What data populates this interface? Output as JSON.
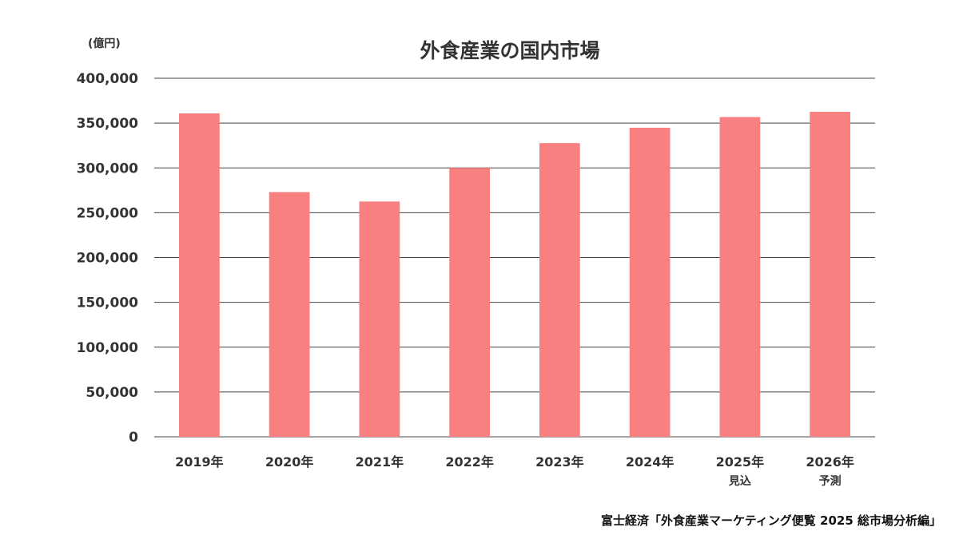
{
  "chart_data": {
    "type": "bar",
    "title": "外食産業の国内市場",
    "unit_label": "(億円)",
    "categories": [
      "2019年",
      "2020年",
      "2021年",
      "2022年",
      "2023年",
      "2024年",
      "2025年",
      "2026年"
    ],
    "category_notes": [
      "",
      "",
      "",
      "",
      "",
      "",
      "見込",
      "予測"
    ],
    "values": [
      360800,
      273000,
      262500,
      300000,
      327700,
      344800,
      356700,
      362600
    ],
    "ylim": [
      0,
      400000
    ],
    "yticks": [
      0,
      50000,
      100000,
      150000,
      200000,
      250000,
      300000,
      350000,
      400000
    ],
    "ytick_labels": [
      "0",
      "50,000",
      "100,000",
      "150,000",
      "200,000",
      "250,000",
      "300,000",
      "350,000",
      "400,000"
    ],
    "grid": true,
    "bar_color": "#f88080",
    "grid_color": "#444444"
  },
  "source": "富士経済「外食産業マーケティング便覧 2025 総市場分析編」"
}
